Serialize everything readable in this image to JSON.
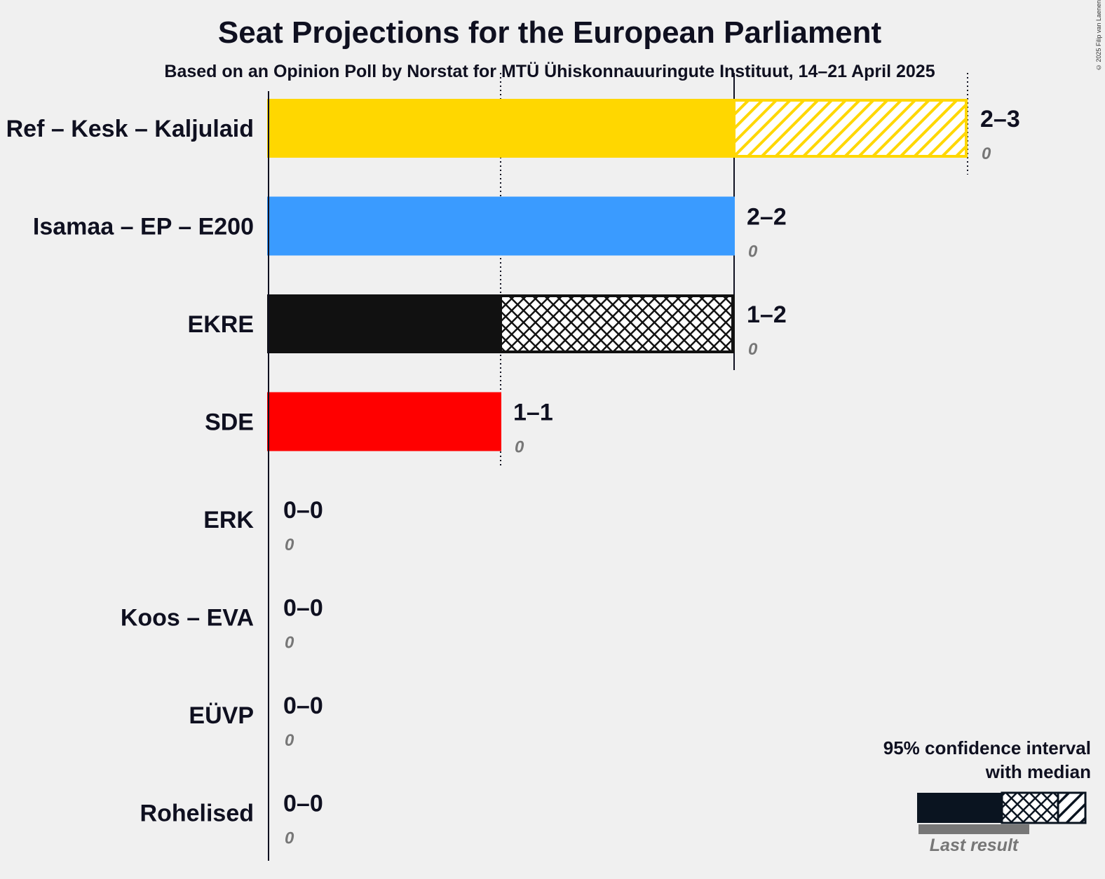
{
  "title": "Seat Projections for the European Parliament",
  "subtitle": "Based on an Opinion Poll by Norstat for MTÜ Ühiskonnauuringute Instituut, 14–21 April 2025",
  "copyright": "© 2025 Filip van Laenen",
  "legend": {
    "title_line1": "95% confidence interval",
    "title_line2": "with median",
    "last_result": "Last result"
  },
  "chart_data": {
    "type": "bar",
    "orientation": "horizontal",
    "x_range": [
      0,
      3
    ],
    "gridlines": [
      1,
      2,
      3
    ],
    "categories": [
      "Ref – Kesk – Kaljulaid",
      "Isamaa – EP – E200",
      "EKRE",
      "SDE",
      "ERK",
      "Koos – EVA",
      "EÜVP",
      "Rohelised"
    ],
    "colors": [
      "#FFD700",
      "#3a9bff",
      "#111111",
      "#ff0000",
      "#111111",
      "#111111",
      "#111111",
      "#111111"
    ],
    "series": [
      {
        "name": "ci_low",
        "values": [
          2,
          2,
          1,
          1,
          0,
          0,
          0,
          0
        ]
      },
      {
        "name": "median",
        "values": [
          2,
          2,
          2,
          1,
          0,
          0,
          0,
          0
        ]
      },
      {
        "name": "ci_high",
        "values": [
          3,
          2,
          2,
          1,
          0,
          0,
          0,
          0
        ]
      },
      {
        "name": "last_result",
        "values": [
          0,
          0,
          0,
          0,
          0,
          0,
          0,
          0
        ]
      }
    ],
    "range_labels": [
      "2–3",
      "2–2",
      "1–2",
      "1–1",
      "0–0",
      "0–0",
      "0–0",
      "0–0"
    ],
    "last_labels": [
      "0",
      "0",
      "0",
      "0",
      "0",
      "0",
      "0",
      "0"
    ]
  }
}
